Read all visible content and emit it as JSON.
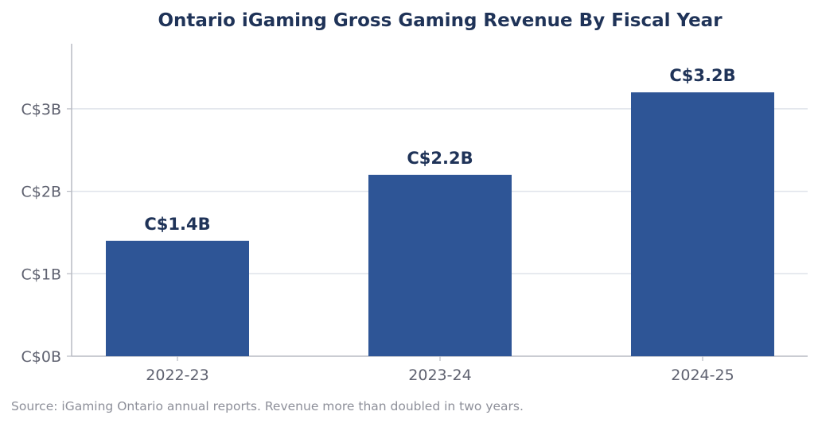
{
  "chart_data": {
    "type": "bar",
    "title": "Ontario iGaming Gross Gaming Revenue By Fiscal Year",
    "xlabel": "",
    "ylabel": "",
    "categories": [
      "2022-23",
      "2023-24",
      "2024-25"
    ],
    "values": [
      1.4,
      2.2,
      3.2
    ],
    "data_labels": [
      "C$1.4B",
      "C$2.2B",
      "C$3.2B"
    ],
    "y_ticks": [
      0,
      1,
      2,
      3
    ],
    "y_tick_labels": [
      "C$0B",
      "C$1B",
      "C$2B",
      "C$3B"
    ],
    "ylim": [
      0,
      3.8
    ],
    "grid": "horizontal",
    "legend": "none",
    "source": "Source: iGaming Ontario annual reports. Revenue more than doubled in two years.",
    "colors": {
      "bar": "#2e5596",
      "title": "#1f3358",
      "data_label": "#1f3358",
      "tick_label": "#5f6270",
      "grid": "#dfe3ea",
      "axis": "#b8bbc3",
      "source": "#8d8f99"
    }
  }
}
